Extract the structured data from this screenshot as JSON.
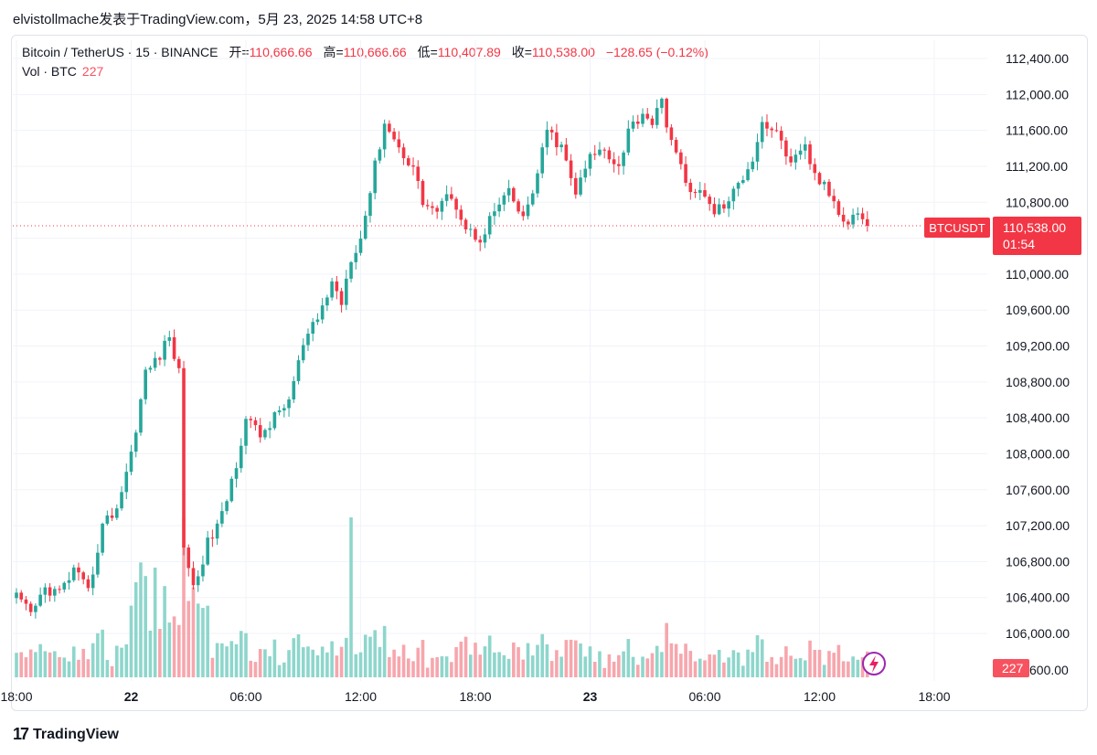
{
  "header": {
    "title": "elvistollmache发表于TradingView.com，5月 23, 2025 14:58 UTC+8"
  },
  "legend": {
    "symbol": "Bitcoin / TetherUS · 15 · BINANCE",
    "open_label": "开=",
    "open": "110,666.66",
    "high_label": "高=",
    "high": "110,666.66",
    "low_label": "低=",
    "low": "110,407.89",
    "close_label": "收=",
    "close": "110,538.00",
    "change": "−128.65 (−0.12%)",
    "vol_label": "Vol · BTC",
    "vol_value": "227"
  },
  "price_badge": {
    "symbol": "BTCUSDT",
    "price": "110,538.00",
    "countdown": "01:54",
    "color": "#f23645"
  },
  "volume_badge": "227",
  "branding": {
    "logo_text": "TradingView"
  },
  "colors": {
    "up": "#26a69a",
    "down": "#f23645",
    "vol_up": "#8ed6cc",
    "vol_down": "#f7a6ad",
    "grid": "#f0f3fa",
    "axis_text": "#131722"
  },
  "chart_data": {
    "type": "candlestick",
    "title": "Bitcoin / TetherUS · 15 · BINANCE",
    "interval": "15m",
    "ylim": [
      105800,
      112600
    ],
    "y_ticks": [
      106000,
      106400,
      106800,
      107200,
      107600,
      108000,
      108400,
      108800,
      109200,
      109600,
      110000,
      110400,
      110800,
      111200,
      111600,
      112000,
      112400
    ],
    "y_tick_labels": [
      "106,000.00",
      "106,400.00",
      "106,800.00",
      "107,200.00",
      "107,600.00",
      "108,000.00",
      "108,400.00",
      "108,800.00",
      "109,200.00",
      "109,600.00",
      "110,000.00",
      "110,400.00",
      "110,800.00",
      "111,200.00",
      "111,600.00",
      "112,000.00",
      "112,400.00"
    ],
    "x_ticks": [
      {
        "bar": 0,
        "label": "18:00"
      },
      {
        "bar": 24,
        "label": "22"
      },
      {
        "bar": 48,
        "label": "06:00"
      },
      {
        "bar": 72,
        "label": "12:00"
      },
      {
        "bar": 96,
        "label": "18:00"
      },
      {
        "bar": 120,
        "label": "23"
      },
      {
        "bar": 144,
        "label": "06:00"
      },
      {
        "bar": 168,
        "label": "12:00"
      },
      {
        "bar": 192,
        "label": "18:00"
      }
    ],
    "volume_bottom_label": "600.00",
    "last_price": 110538,
    "anchors": [
      [
        0,
        106400
      ],
      [
        3,
        106200
      ],
      [
        6,
        106500
      ],
      [
        9,
        106450
      ],
      [
        12,
        106700
      ],
      [
        15,
        106450
      ],
      [
        18,
        107200
      ],
      [
        21,
        107400
      ],
      [
        24,
        108000
      ],
      [
        27,
        108900
      ],
      [
        30,
        109100
      ],
      [
        32,
        109300
      ],
      [
        33,
        109100
      ],
      [
        34,
        108900
      ],
      [
        35,
        107000
      ],
      [
        37,
        106500
      ],
      [
        40,
        107000
      ],
      [
        43,
        107300
      ],
      [
        46,
        107900
      ],
      [
        48,
        108400
      ],
      [
        51,
        108200
      ],
      [
        54,
        108400
      ],
      [
        57,
        108600
      ],
      [
        60,
        109200
      ],
      [
        63,
        109500
      ],
      [
        66,
        109900
      ],
      [
        68,
        109700
      ],
      [
        70,
        110200
      ],
      [
        72,
        110400
      ],
      [
        75,
        111200
      ],
      [
        77,
        111700
      ],
      [
        80,
        111400
      ],
      [
        83,
        111200
      ],
      [
        85,
        110800
      ],
      [
        88,
        110700
      ],
      [
        91,
        110900
      ],
      [
        94,
        110500
      ],
      [
        97,
        110400
      ],
      [
        100,
        110700
      ],
      [
        103,
        110900
      ],
      [
        106,
        110600
      ],
      [
        109,
        111100
      ],
      [
        111,
        111600
      ],
      [
        114,
        111400
      ],
      [
        117,
        110900
      ],
      [
        120,
        111300
      ],
      [
        123,
        111400
      ],
      [
        126,
        111200
      ],
      [
        128,
        111600
      ],
      [
        131,
        111800
      ],
      [
        133,
        111700
      ],
      [
        135,
        111900
      ],
      [
        137,
        111500
      ],
      [
        140,
        111000
      ],
      [
        143,
        110900
      ],
      [
        146,
        110700
      ],
      [
        149,
        110800
      ],
      [
        151,
        111000
      ],
      [
        154,
        111300
      ],
      [
        156,
        111700
      ],
      [
        158,
        111600
      ],
      [
        160,
        111500
      ],
      [
        162,
        111200
      ],
      [
        165,
        111400
      ],
      [
        167,
        111100
      ],
      [
        170,
        110900
      ],
      [
        172,
        110700
      ],
      [
        174,
        110600
      ],
      [
        176,
        110700
      ],
      [
        178,
        110538
      ]
    ],
    "volume_range": [
      0,
      1500
    ]
  }
}
